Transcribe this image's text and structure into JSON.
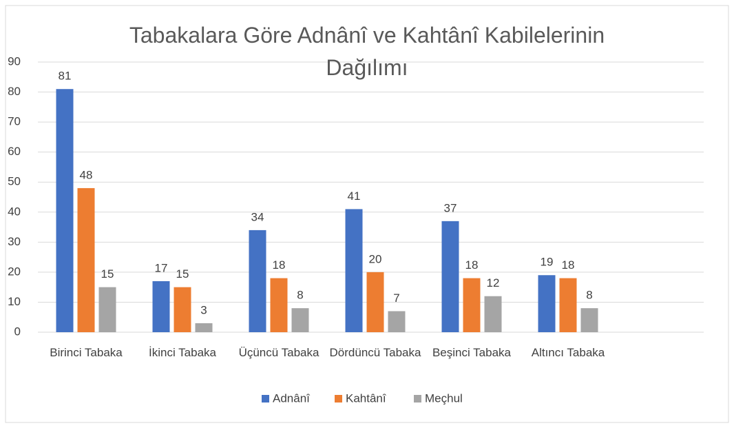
{
  "chart_data": {
    "type": "bar",
    "title": "Tabakalara Göre Adnânî ve Kahtânî Kabilelerinin Dağılımı",
    "categories": [
      "Birinci Tabaka",
      "İkinci Tabaka",
      "Üçüncü Tabaka",
      "Dördüncü Tabaka",
      "Beşinci Tabaka",
      "Altıncı Tabaka",
      null
    ],
    "series": [
      {
        "name": "Adnânî",
        "color": "#4472c4",
        "values": [
          81,
          17,
          34,
          41,
          37,
          19,
          null
        ]
      },
      {
        "name": "Kahtânî",
        "color": "#ed7d31",
        "values": [
          48,
          15,
          18,
          20,
          18,
          18,
          null
        ]
      },
      {
        "name": "Meçhul",
        "color": "#a5a5a5",
        "values": [
          15,
          3,
          8,
          7,
          12,
          8,
          null
        ]
      }
    ],
    "ylim": [
      0,
      90
    ],
    "yticks": [
      0,
      10,
      20,
      30,
      40,
      50,
      60,
      70,
      80,
      90
    ],
    "grid": true,
    "legend": "bottom"
  }
}
